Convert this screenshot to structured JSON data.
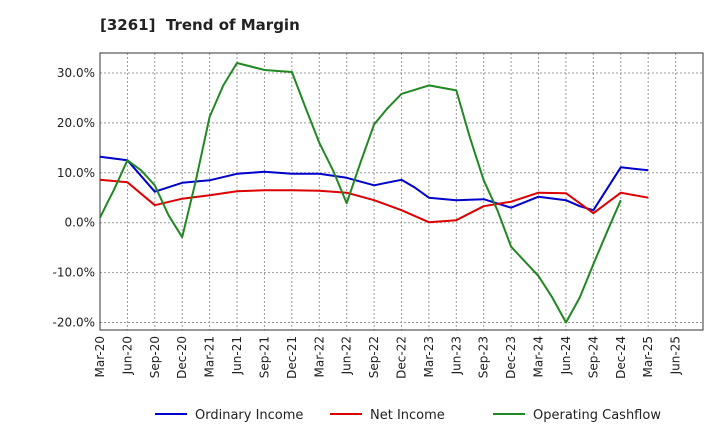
{
  "chart_data": {
    "type": "line",
    "title": "[3261]  Trend of Margin",
    "xlabel": "",
    "ylabel": "",
    "ylim": [
      -21.5,
      34
    ],
    "yticks": [
      30,
      20,
      10,
      0,
      -10,
      -20
    ],
    "ytick_labels": [
      "30.0%",
      "20.0%",
      "10.0%",
      "0.0%",
      "-10.0%",
      "-20.0%"
    ],
    "grid": true,
    "legend_position": "bottom",
    "x": [
      "Mar-20",
      "Jun-20",
      "Sep-20",
      "Dec-20",
      "Mar-21",
      "Jun-21",
      "Sep-21",
      "Dec-21",
      "Mar-22",
      "Jun-22",
      "Sep-22",
      "Dec-22",
      "Mar-23",
      "Jun-23",
      "Sep-23",
      "Dec-23",
      "Mar-24",
      "Jun-24",
      "Sep-24",
      "Dec-24",
      "Mar-25",
      "Jun-25"
    ],
    "series": [
      {
        "name": "Ordinary Income",
        "color": "#0000cc",
        "points": [
          [
            0,
            13.2
          ],
          [
            1,
            12.5
          ],
          [
            2,
            6.2
          ],
          [
            3,
            8.0
          ],
          [
            4,
            8.5
          ],
          [
            5,
            9.8
          ],
          [
            6,
            10.2
          ],
          [
            7,
            9.8
          ],
          [
            8,
            9.8
          ],
          [
            9,
            9.0
          ],
          [
            10,
            7.5
          ],
          [
            11,
            8.6
          ],
          [
            11.5,
            7.0
          ],
          [
            12,
            5.0
          ],
          [
            13,
            4.5
          ],
          [
            14,
            4.7
          ],
          [
            15,
            3.0
          ],
          [
            16,
            5.2
          ],
          [
            17,
            4.5
          ],
          [
            17.5,
            3.3
          ],
          [
            18,
            2.5
          ],
          [
            19,
            11.1
          ],
          [
            20,
            10.5
          ]
        ]
      },
      {
        "name": "Net Income",
        "color": "#dd0000",
        "points": [
          [
            0,
            8.6
          ],
          [
            1,
            8.1
          ],
          [
            2,
            3.5
          ],
          [
            3,
            4.8
          ],
          [
            4,
            5.5
          ],
          [
            5,
            6.3
          ],
          [
            6,
            6.5
          ],
          [
            7,
            6.5
          ],
          [
            8,
            6.4
          ],
          [
            9,
            6.0
          ],
          [
            10,
            4.5
          ],
          [
            11,
            2.5
          ],
          [
            12,
            0.1
          ],
          [
            13,
            0.5
          ],
          [
            14,
            3.3
          ],
          [
            15,
            4.2
          ],
          [
            16,
            6.0
          ],
          [
            17,
            5.9
          ],
          [
            18,
            1.9
          ],
          [
            19,
            6.0
          ],
          [
            20,
            5.0
          ]
        ]
      },
      {
        "name": "Operating Cashflow",
        "color": "#228822",
        "points": [
          [
            0,
            1.0
          ],
          [
            0.25,
            3.8
          ],
          [
            0.5,
            6.5
          ],
          [
            0.75,
            9.5
          ],
          [
            1,
            12.5
          ],
          [
            1.5,
            10.5
          ],
          [
            2,
            7.5
          ],
          [
            2.5,
            1.5
          ],
          [
            3,
            -2.9
          ],
          [
            3.5,
            8.5
          ],
          [
            4,
            21.2
          ],
          [
            4.5,
            27.5
          ],
          [
            5,
            32.0
          ],
          [
            6,
            30.6
          ],
          [
            7,
            30.2
          ],
          [
            7.5,
            23.0
          ],
          [
            8,
            16.0
          ],
          [
            8.5,
            10.5
          ],
          [
            9,
            3.9
          ],
          [
            9.5,
            12.0
          ],
          [
            10,
            19.7
          ],
          [
            10.5,
            23.0
          ],
          [
            11,
            25.8
          ],
          [
            12,
            27.5
          ],
          [
            13,
            26.5
          ],
          [
            13.5,
            17.0
          ],
          [
            14,
            8.5
          ],
          [
            14.5,
            2.5
          ],
          [
            15,
            -4.8
          ],
          [
            16,
            -10.7
          ],
          [
            16.5,
            -15.0
          ],
          [
            17,
            -20.0
          ],
          [
            17.5,
            -15.0
          ],
          [
            18,
            -8.3
          ],
          [
            18.5,
            -1.8
          ],
          [
            19,
            4.5
          ]
        ]
      }
    ]
  }
}
